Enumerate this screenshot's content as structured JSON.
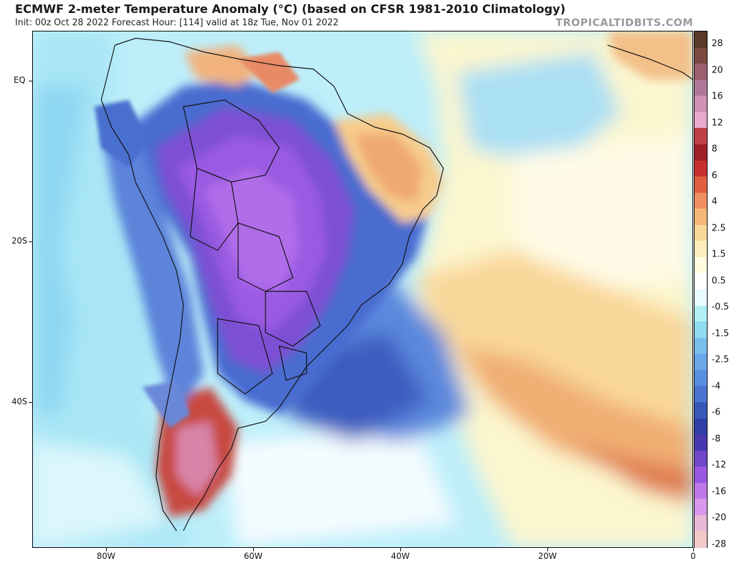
{
  "header": {
    "title": "ECMWF 2-meter Temperature Anomaly (°C) (based on CFSR 1981-2010 Climatology)",
    "subtitle": "Init: 00z Oct 28 2022   Forecast Hour: [114]   valid at 18z Tue, Nov 01 2022",
    "credit": "TROPICALTIDBITS.COM"
  },
  "axes": {
    "lat_labels": [
      "EQ",
      "20S",
      "40S"
    ],
    "lon_labels": [
      "80W",
      "60W",
      "40W",
      "20W",
      "0"
    ]
  },
  "colorbar": {
    "labels": [
      "28",
      "20",
      "16",
      "12",
      "8",
      "6",
      "4",
      "2.5",
      "1.5",
      "0.5",
      "-0.5",
      "-1.5",
      "-2.5",
      "-4",
      "-6",
      "-8",
      "-12",
      "-16",
      "-20",
      "-28"
    ],
    "colors": [
      "#5a3a2a",
      "#7a4a42",
      "#9a6070",
      "#b07898",
      "#d090b8",
      "#e8a8d0",
      "#c04048",
      "#a02028",
      "#c83030",
      "#e06040",
      "#f09060",
      "#f5b878",
      "#f8d898",
      "#fbeebc",
      "#fffce0",
      "#ffffff",
      "#e8fbff",
      "#b0f0f5",
      "#90dcf0",
      "#78c0ec",
      "#6aa6e8",
      "#5a8ee0",
      "#4a74d0",
      "#3858b8",
      "#3040a8",
      "#4838b0",
      "#7048c8",
      "#9858e0",
      "#c078e8",
      "#d898ec",
      "#e8b8d8",
      "#f2c8c8"
    ]
  }
}
